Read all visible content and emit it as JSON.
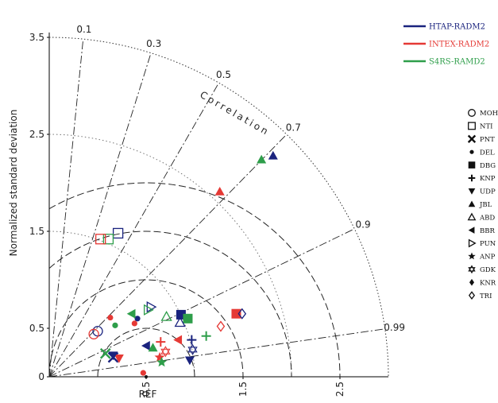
{
  "chart_data": {
    "type": "scatter",
    "subtype": "taylor-diagram",
    "title": "",
    "ylabel": "Normalized standard deviation",
    "xlabel": "REF",
    "corr_label": "Correlation",
    "std_ticks": [
      "0",
      "0.5",
      "1.5",
      "2.5",
      "3.5"
    ],
    "x_ticks": [
      "0.5",
      "1.5",
      "2.5"
    ],
    "std_range": [
      0,
      3.6
    ],
    "corr_ticks": [
      "0.1",
      "0.3",
      "0.5",
      "0.7",
      "0.9",
      "0.99"
    ],
    "models": [
      {
        "name": "HTAP-RADM2",
        "color": "#1a237e"
      },
      {
        "name": "INTEX-RADM2",
        "color": "#e53935"
      },
      {
        "name": "S4RS-RAMD2",
        "color": "#2e9e4a"
      }
    ],
    "sites": [
      {
        "name": "MOH",
        "marker": "circle-open"
      },
      {
        "name": "NTI",
        "marker": "square-open"
      },
      {
        "name": "PNT",
        "marker": "x"
      },
      {
        "name": "DEL",
        "marker": "dot"
      },
      {
        "name": "DBG",
        "marker": "square"
      },
      {
        "name": "KNP",
        "marker": "plus"
      },
      {
        "name": "UDP",
        "marker": "tri-down"
      },
      {
        "name": "JBL",
        "marker": "tri-up"
      },
      {
        "name": "ABD",
        "marker": "tri-up-open"
      },
      {
        "name": "BBR",
        "marker": "tri-left"
      },
      {
        "name": "PUN",
        "marker": "tri-right-open"
      },
      {
        "name": "ANP",
        "marker": "star"
      },
      {
        "name": "GDK",
        "marker": "star6-open"
      },
      {
        "name": "KNR",
        "marker": "diamond"
      },
      {
        "name": "TRI",
        "marker": "diamond-open"
      }
    ],
    "points": [
      {
        "site": "JBL",
        "model": "HTAP-RADM2",
        "x": 2.31,
        "y": 2.28
      },
      {
        "site": "JBL",
        "model": "S4RS-RAMD2",
        "x": 2.19,
        "y": 2.24
      },
      {
        "site": "JBL",
        "model": "INTEX-RADM2",
        "x": 1.76,
        "y": 1.91
      },
      {
        "site": "NTI",
        "model": "HTAP-RADM2",
        "x": 0.71,
        "y": 1.48
      },
      {
        "site": "NTI",
        "model": "S4RS-RAMD2",
        "x": 0.61,
        "y": 1.42
      },
      {
        "site": "NTI",
        "model": "INTEX-RADM2",
        "x": 0.53,
        "y": 1.42
      },
      {
        "site": "MOH",
        "model": "HTAP-RADM2",
        "x": 0.5,
        "y": 0.47
      },
      {
        "site": "MOH",
        "model": "INTEX-RADM2",
        "x": 0.46,
        "y": 0.44
      },
      {
        "site": "DEL",
        "model": "INTEX-RADM2",
        "x": 0.63,
        "y": 0.61
      },
      {
        "site": "DEL",
        "model": "S4RS-RAMD2",
        "x": 0.68,
        "y": 0.53
      },
      {
        "site": "DEL",
        "model": "HTAP-RADM2",
        "x": 0.91,
        "y": 0.6
      },
      {
        "site": "DEL",
        "model": "INTEX-RADM2",
        "x": 0.88,
        "y": 0.55
      },
      {
        "site": "DEL",
        "model": "INTEX-RADM2",
        "x": 0.97,
        "y": 0.04
      },
      {
        "site": "PUN",
        "model": "HTAP-RADM2",
        "x": 1.05,
        "y": 0.72
      },
      {
        "site": "PUN",
        "model": "S4RS-RAMD2",
        "x": 1.02,
        "y": 0.69
      },
      {
        "site": "BBR",
        "model": "S4RS-RAMD2",
        "x": 0.85,
        "y": 0.65
      },
      {
        "site": "ABD",
        "model": "S4RS-RAMD2",
        "x": 1.21,
        "y": 0.62
      },
      {
        "site": "DBG",
        "model": "HTAP-RADM2",
        "x": 1.36,
        "y": 0.64
      },
      {
        "site": "DBG",
        "model": "S4RS-RAMD2",
        "x": 1.43,
        "y": 0.6
      },
      {
        "site": "DBG",
        "model": "INTEX-RADM2",
        "x": 1.93,
        "y": 0.65
      },
      {
        "site": "TRI",
        "model": "HTAP-RADM2",
        "x": 1.99,
        "y": 0.65
      },
      {
        "site": "TRI",
        "model": "INTEX-RADM2",
        "x": 1.77,
        "y": 0.52
      },
      {
        "site": "ABD",
        "model": "HTAP-RADM2",
        "x": 1.35,
        "y": 0.56
      },
      {
        "site": "KNP",
        "model": "S4RS-RAMD2",
        "x": 1.62,
        "y": 0.42
      },
      {
        "site": "KNP",
        "model": "HTAP-RADM2",
        "x": 1.47,
        "y": 0.38
      },
      {
        "site": "BBR",
        "model": "INTEX-RADM2",
        "x": 1.33,
        "y": 0.38
      },
      {
        "site": "KNP",
        "model": "INTEX-RADM2",
        "x": 1.15,
        "y": 0.36
      },
      {
        "site": "BBR",
        "model": "HTAP-RADM2",
        "x": 1.0,
        "y": 0.32
      },
      {
        "site": "JBL",
        "model": "S4RS-RAMD2",
        "x": 1.07,
        "y": 0.3
      },
      {
        "site": "GDK",
        "model": "HTAP-RADM2",
        "x": 1.48,
        "y": 0.28
      },
      {
        "site": "GDK",
        "model": "INTEX-RADM2",
        "x": 1.2,
        "y": 0.26
      },
      {
        "site": "UDP",
        "model": "HTAP-RADM2",
        "x": 1.45,
        "y": 0.17
      },
      {
        "site": "ANP",
        "model": "INTEX-RADM2",
        "x": 1.14,
        "y": 0.2
      },
      {
        "site": "ANP",
        "model": "S4RS-RAMD2",
        "x": 1.16,
        "y": 0.15
      },
      {
        "site": "PNT",
        "model": "S4RS-RAMD2",
        "x": 0.58,
        "y": 0.24
      },
      {
        "site": "PNT",
        "model": "HTAP-RADM2",
        "x": 0.66,
        "y": 0.2
      },
      {
        "site": "UDP",
        "model": "INTEX-RADM2",
        "x": 0.72,
        "y": 0.19
      },
      {
        "site": "UDP",
        "model": "HTAP-RADM2",
        "x": 0.66,
        "y": 0.22
      }
    ]
  }
}
